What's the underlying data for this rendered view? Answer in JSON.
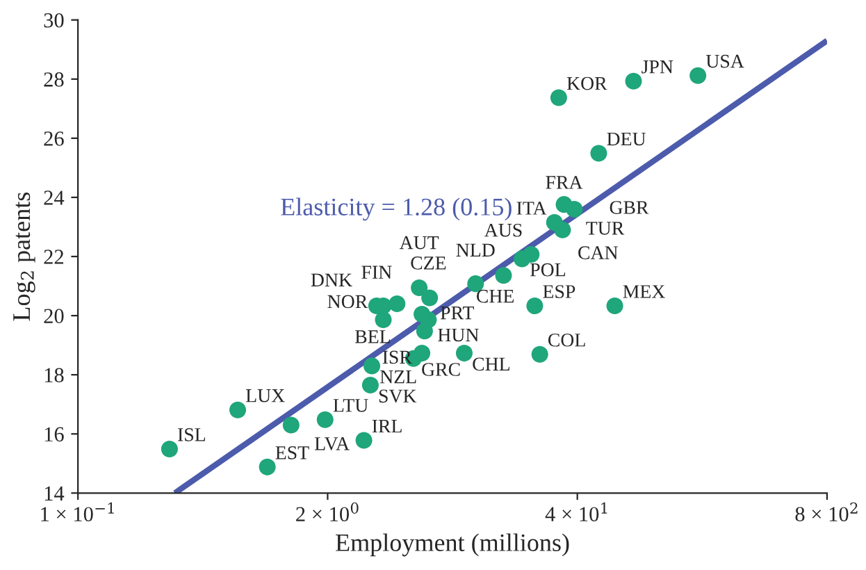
{
  "chart_data": {
    "type": "scatter",
    "xlabel": "Employment (millions)",
    "ylabel": "Log$_{2}$ patents",
    "log": "x",
    "grid": false,
    "marker": "circle",
    "xlim": [
      0.1,
      800
    ],
    "xticks": [
      {
        "value": 0.1,
        "label": "1 × 10$^{−1}$"
      },
      {
        "value": 2,
        "label": "2 × 10$^{0}$"
      },
      {
        "value": 40,
        "label": "4 × 10$^{1}$"
      },
      {
        "value": 800,
        "label": "8 × 10$^{2}$"
      }
    ],
    "ylim": [
      14,
      30
    ],
    "yticks": [
      14,
      16,
      18,
      20,
      22,
      24,
      26,
      28,
      30
    ],
    "series": [
      {
        "color": "#1fa67a",
        "x": [
          0.3,
          0.97,
          0.68,
          1.29,
          1.94,
          3.09,
          3.34,
          3.4,
          5.6,
          6.2,
          10.3,
          25.5,
          24,
          62.7,
          6.4,
          6.7,
          6.2,
          3.9,
          3.6,
          3.9,
          4.6,
          6.0,
          6.8,
          11.8,
          16.5,
          20.6,
          23,
          30.4,
          33.5,
          34.1,
          38.6,
          51.7,
          32,
          78.5,
          170
        ],
        "values": [
          15.49,
          14.88,
          16.81,
          16.3,
          16.48,
          15.78,
          17.65,
          18.3,
          18.55,
          18.73,
          18.73,
          18.69,
          20.33,
          20.33,
          19.48,
          19.86,
          20.05,
          19.86,
          20.33,
          20.33,
          20.4,
          20.94,
          20.6,
          21.08,
          21.36,
          21.92,
          22.07,
          23.15,
          22.9,
          23.76,
          23.6,
          25.49,
          27.37,
          27.93,
          28.12
        ]
      },
      {
        "type": "line",
        "color": "#4c5bab",
        "line_style": "solid",
        "marker": "none",
        "x": [
          0.32,
          800
        ],
        "values": [
          14.0,
          29.3
        ]
      }
    ],
    "annotations": [
      "Elasticity = 1.28 (0.15)",
      {
        "text": "ISL",
        "x": 0.3,
        "y": 15.49
      },
      {
        "text": "EST",
        "x": 0.97,
        "y": 14.88
      },
      {
        "text": "LUX",
        "x": 0.68,
        "y": 16.81
      },
      {
        "text": "LVA",
        "x": 1.29,
        "y": 16.3
      },
      {
        "text": "LTU",
        "x": 1.94,
        "y": 16.48
      },
      {
        "text": "IRL",
        "x": 3.09,
        "y": 15.78
      },
      {
        "text": "SVK",
        "x": 3.34,
        "y": 17.65
      },
      {
        "text": "NZL",
        "x": 3.4,
        "y": 18.3
      },
      {
        "text": "GRC",
        "x": 5.6,
        "y": 18.55
      },
      {
        "text": "HUN",
        "x": 6.2,
        "y": 18.73
      },
      {
        "text": "CHL",
        "x": 10.3,
        "y": 18.73
      },
      {
        "text": "COL",
        "x": 25.5,
        "y": 18.69
      },
      {
        "text": "ESP",
        "x": 24,
        "y": 20.33
      },
      {
        "text": "MEX",
        "x": 62.7,
        "y": 20.33
      },
      {
        "text": "PRT",
        "x": 6.4,
        "y": 19.48
      },
      {
        "text": "CZE",
        "x": 6.7,
        "y": 19.86
      },
      {
        "text": "BEL",
        "x": 6.2,
        "y": 20.05
      },
      {
        "text": "NOR",
        "x": 3.9,
        "y": 19.86
      },
      {
        "text": "FIN",
        "x": 3.6,
        "y": 20.33
      },
      {
        "text": "DNK",
        "x": 3.9,
        "y": 20.33
      },
      {
        "text": "ISR",
        "x": 4.6,
        "y": 20.4
      },
      {
        "text": "AUT",
        "x": 6.0,
        "y": 20.94
      },
      {
        "text": "CHE",
        "x": 6.8,
        "y": 20.6
      },
      {
        "text": "NLD",
        "x": 11.8,
        "y": 21.08
      },
      {
        "text": "AUS",
        "x": 16.5,
        "y": 21.36
      },
      {
        "text": "POL",
        "x": 20.6,
        "y": 21.92
      },
      {
        "text": "CAN",
        "x": 23,
        "y": 22.07
      },
      {
        "text": "ITA",
        "x": 30.4,
        "y": 23.15
      },
      {
        "text": "TUR",
        "x": 33.5,
        "y": 22.9
      },
      {
        "text": "FRA",
        "x": 34.1,
        "y": 23.76
      },
      {
        "text": "GBR",
        "x": 38.6,
        "y": 23.6
      },
      {
        "text": "DEU",
        "x": 51.7,
        "y": 25.49
      },
      {
        "text": "KOR",
        "x": 32,
        "y": 27.37
      },
      {
        "text": "JPN",
        "x": 78.5,
        "y": 27.93
      },
      {
        "text": "USA",
        "x": 170,
        "y": 28.12
      }
    ]
  }
}
